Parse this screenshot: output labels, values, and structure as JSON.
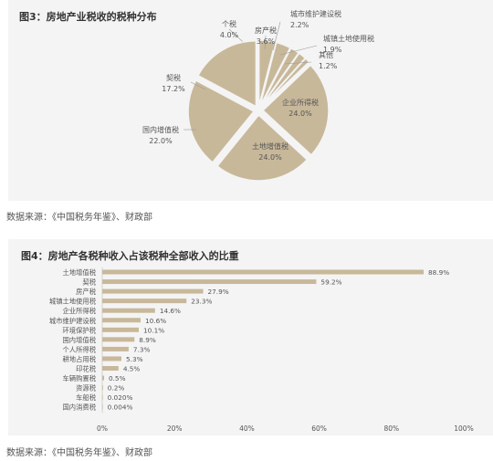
{
  "figure3": {
    "title": "图3：房地产业税收的税种分布",
    "source": "数据来源：《中国税务年鉴》、财政部"
  },
  "figure4": {
    "title": "图4：房地产各税种收入占该税种全部收入的比重",
    "source": "数据来源：《中国税务年鉴》、财政部"
  },
  "colors": {
    "accent": "#c8b89a",
    "panel": "#f4f4f4",
    "text": "#555555"
  },
  "chart_data": [
    {
      "type": "pie",
      "title": "图3：房地产业税收的税种分布",
      "slices": [
        {
          "label": "个税",
          "value": 4.0,
          "display": "4.0%"
        },
        {
          "label": "房产税",
          "value": 3.6,
          "display": "3.6%"
        },
        {
          "label": "城市维护建设税",
          "value": 2.2,
          "display": "2.2%"
        },
        {
          "label": "城镇土地使用税",
          "value": 1.9,
          "display": "1.9%"
        },
        {
          "label": "其他",
          "value": 1.2,
          "display": "1.2%"
        },
        {
          "label": "企业所得税",
          "value": 24.0,
          "display": "24.0%"
        },
        {
          "label": "土地增值税",
          "value": 24.0,
          "display": "24.0%"
        },
        {
          "label": "国内增值税",
          "value": 22.0,
          "display": "22.0%"
        },
        {
          "label": "契税",
          "value": 17.2,
          "display": "17.2%"
        }
      ]
    },
    {
      "type": "bar",
      "orientation": "horizontal",
      "title": "图4：房地产各税种收入占该税种全部收入的比重",
      "categories": [
        "土地增值税",
        "契税",
        "房产税",
        "城镇土地使用税",
        "企业所得税",
        "城市维护建设税",
        "环境保护税",
        "国内增值税",
        "个人所得税",
        "耕地占用税",
        "印花税",
        "车辆购置税",
        "资源税",
        "车船税",
        "国内消费税"
      ],
      "values": [
        88.9,
        59.2,
        27.9,
        23.3,
        14.6,
        10.6,
        10.1,
        8.9,
        7.3,
        5.3,
        4.5,
        0.5,
        0.2,
        0.02,
        0.004
      ],
      "value_labels": [
        "88.9%",
        "59.2%",
        "27.9%",
        "23.3%",
        "14.6%",
        "10.6%",
        "10.1%",
        "8.9%",
        "7.3%",
        "5.3%",
        "4.5%",
        "0.5%",
        "0.2%",
        "0.020%",
        "0.004%"
      ],
      "xlim": [
        0,
        100
      ],
      "xticks": [
        0,
        20,
        40,
        60,
        80,
        100
      ],
      "xtick_labels": [
        "0%",
        "20%",
        "40%",
        "60%",
        "80%",
        "100%"
      ],
      "grid": false
    }
  ]
}
